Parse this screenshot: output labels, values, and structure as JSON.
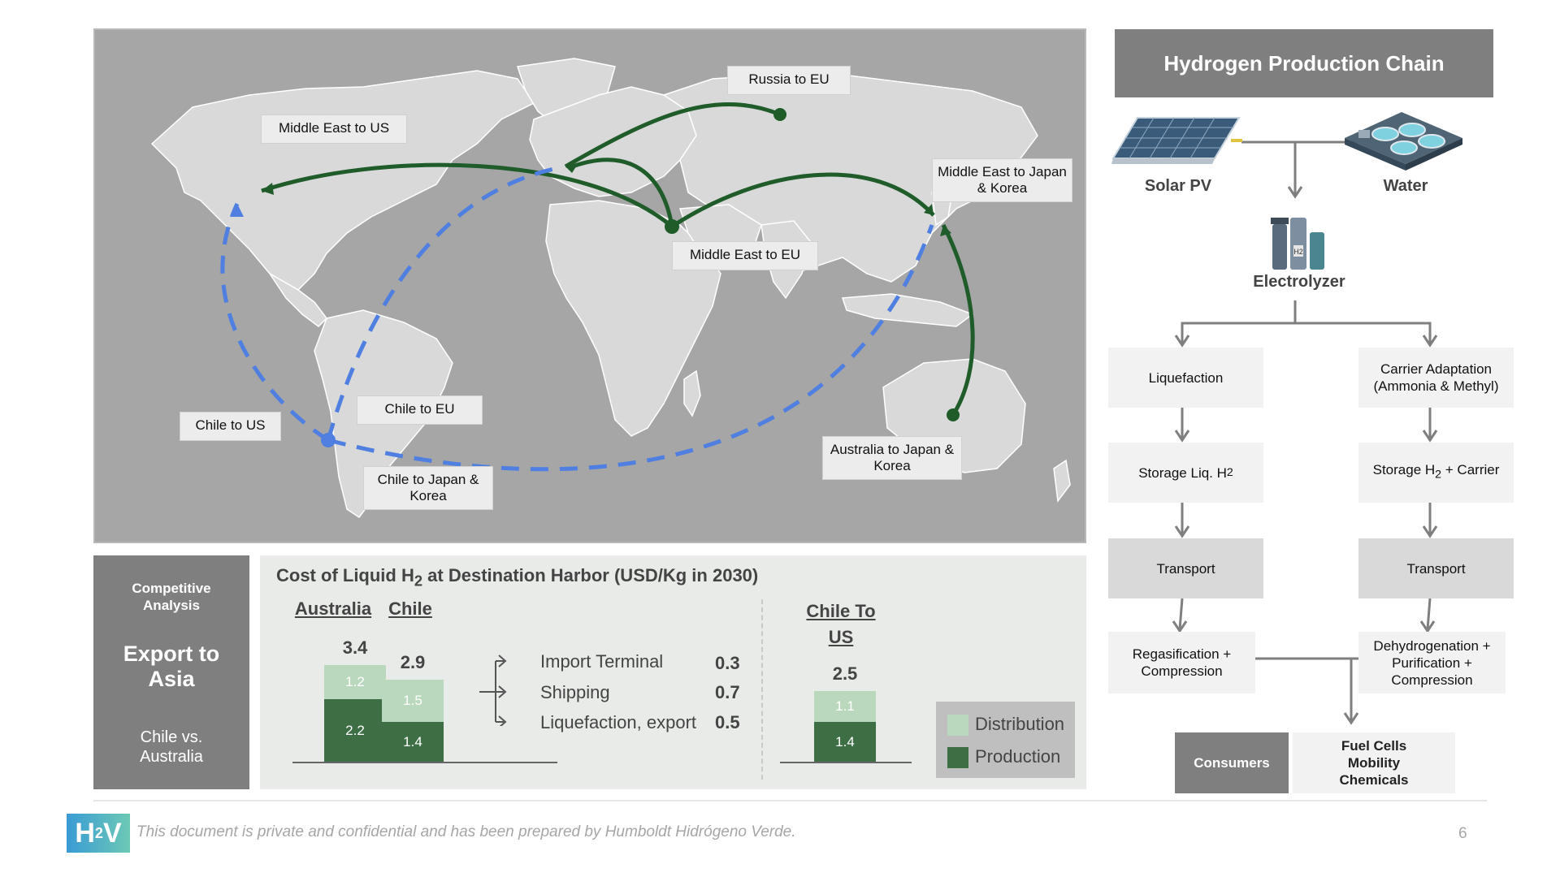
{
  "map": {
    "routes": [
      {
        "id": "russia-eu",
        "label": "Russia to EU"
      },
      {
        "id": "me-us",
        "label": "Middle East to US"
      },
      {
        "id": "me-jk",
        "label": "Middle East to Japan & Korea"
      },
      {
        "id": "me-eu",
        "label": "Middle East to EU"
      },
      {
        "id": "chile-eu",
        "label": "Chile to EU"
      },
      {
        "id": "chile-us",
        "label": "Chile to US"
      },
      {
        "id": "chile-jk",
        "label": "Chile to Japan & Korea"
      },
      {
        "id": "aus-jk",
        "label": "Australia to Japan & Korea"
      }
    ],
    "colors": {
      "ocean": "#a6a6a6",
      "land": "#d9d9d9",
      "green_route": "#1f5c2a",
      "blue_route": "#4f7fe0"
    }
  },
  "chain": {
    "title": "Hydrogen Production Chain",
    "solar_label": "Solar PV",
    "water_label": "Water",
    "electrolyzer_label": "Electrolyzer",
    "electrolyzer_tag": "H2",
    "left": {
      "liquefaction": "Liquefaction",
      "storage_prefix": "Storage Liq. H",
      "storage_sub": "2",
      "transport": "Transport",
      "regas": "Regasification + Compression"
    },
    "right": {
      "carrier": "Carrier Adaptation (Ammonia & Methyl)",
      "storage_prefix": "Storage H",
      "storage_sub": "2",
      "storage_suffix": " + Carrier",
      "transport": "Transport",
      "dehydro": "Dehydrogenation + Purification + Compression"
    },
    "consumers_label": "Consumers",
    "consumers_list": [
      "Fuel Cells",
      "Mobility",
      "Chemicals"
    ]
  },
  "competitive": {
    "kicker": "Competitive Analysis",
    "title": "Export to Asia",
    "subtitle": "Chile vs. Australia"
  },
  "chart_data": {
    "type": "bar",
    "title_prefix": "Cost of Liquid H",
    "title_sub": "2",
    "title_suffix": " at Destination Harbor (USD/Kg in 2030)",
    "categories": [
      "Australia",
      "Chile",
      "Chile To US"
    ],
    "totals": [
      3.4,
      2.9,
      2.5
    ],
    "series": [
      {
        "name": "Production",
        "values": [
          2.2,
          1.4,
          1.4
        ],
        "color": "#3d6e44"
      },
      {
        "name": "Distribution",
        "values": [
          1.2,
          1.5,
          1.1
        ],
        "color": "#b9d8bd"
      }
    ],
    "breakdown": [
      {
        "label": "Import Terminal",
        "value": "0.3"
      },
      {
        "label": "Shipping",
        "value": "0.7"
      },
      {
        "label": "Liquefaction, export",
        "value": "0.5"
      }
    ]
  },
  "footer": {
    "logo_h": "H",
    "logo_sub": "2",
    "logo_v": "V",
    "disclaimer": "This document is private and confidential and has been prepared by Humboldt Hidrógeno Verde.",
    "page_number": "6"
  }
}
